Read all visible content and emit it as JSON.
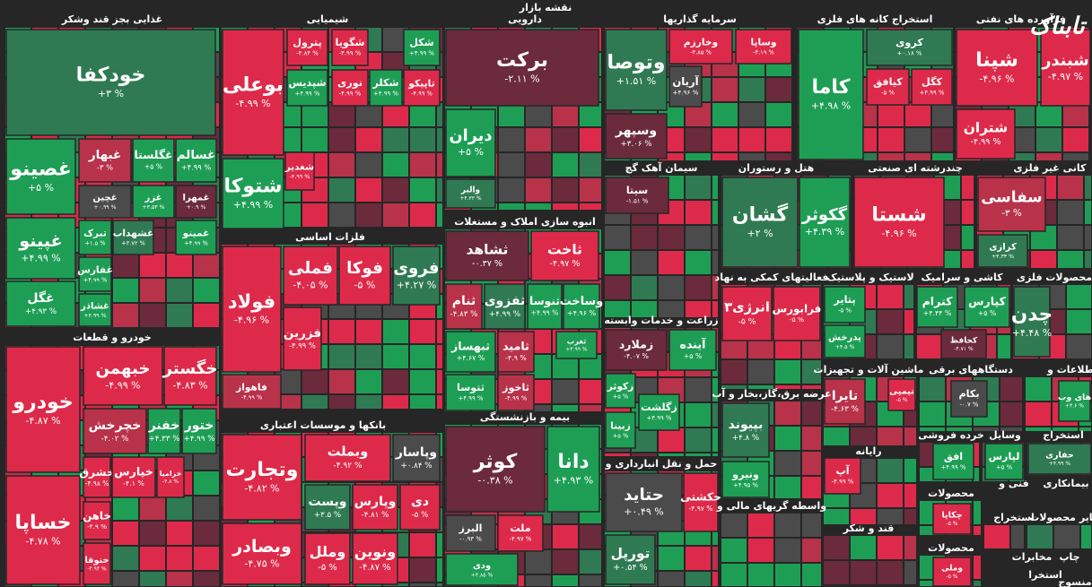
{
  "title": "نقشه بازار",
  "watermark": "تابناک",
  "sectors": [
    {
      "name": "غذایی بجز قند وشکر",
      "tiles": [
        {
          "label": "خودکفا",
          "change": "+۳ %"
        },
        {
          "label": "غصینو",
          "change": "+۵ %"
        },
        {
          "label": "غبهار",
          "change": "-۳ %"
        },
        {
          "label": "غگلستا",
          "change": "+۵ %"
        },
        {
          "label": "غسالم",
          "change": "+۴.۹۹ %"
        },
        {
          "label": "غچین",
          "change": "+۰.۹۹ %"
        },
        {
          "label": "غزر",
          "change": "+۳.۵۳ %"
        },
        {
          "label": "غمهرا",
          "change": "+۰.۹ %"
        },
        {
          "label": "غپینو",
          "change": "+۴.۹۹ %"
        },
        {
          "label": "تبرک",
          "change": "+۱.۵ %"
        },
        {
          "label": "غشهداب",
          "change": "+۳.۷۲ %"
        },
        {
          "label": "غمینو",
          "change": "+۴.۹۹ %"
        },
        {
          "label": "غفارس",
          "change": "+۴.۹۹ %"
        },
        {
          "label": "غگل",
          "change": "+۴.۹۳ %"
        },
        {
          "label": "غشاذر",
          "change": "+۴.۹۹ %"
        }
      ]
    },
    {
      "name": "خودرو و قطعات",
      "tiles": [
        {
          "label": "خودرو",
          "change": "-۴.۸۷ %"
        },
        {
          "label": "خساپا",
          "change": "-۴.۷۸ %"
        },
        {
          "label": "خبهمن",
          "change": "-۴.۹۹ %"
        },
        {
          "label": "خگستر",
          "change": "-۴.۸۳ %"
        },
        {
          "label": "خچرخش",
          "change": "-۴.۰۲ %"
        },
        {
          "label": "خفنر",
          "change": "+۴.۳۳ %"
        },
        {
          "label": "ختور",
          "change": "+۴.۹۹ %"
        },
        {
          "label": "خشرق",
          "change": "-۴.۹۸ %"
        },
        {
          "label": "خپارس",
          "change": "-۴.۱ %"
        },
        {
          "label": "خزامیا",
          "change": "-۴.۸ %"
        },
        {
          "label": "خاهن",
          "change": "-۴.۹ %"
        },
        {
          "label": "ختوقا",
          "change": "-۴.۹۴ %"
        }
      ]
    },
    {
      "name": "شیمیایی",
      "tiles": [
        {
          "label": "بوعلی",
          "change": "-۴.۹۹ %"
        },
        {
          "label": "پترول",
          "change": "-۴.۸۴ %"
        },
        {
          "label": "شگویا",
          "change": "-۴.۹۹ %"
        },
        {
          "label": "شکل",
          "change": "+۴.۹۹ %"
        },
        {
          "label": "شپدیس",
          "change": "+۴.۹۹ %"
        },
        {
          "label": "نوری",
          "change": "-۴.۹۹ %"
        },
        {
          "label": "شکلر",
          "change": "+۴.۹۹ %"
        },
        {
          "label": "تاپیکو",
          "change": "-۴.۹۹ %"
        },
        {
          "label": "شغدیر",
          "change": "-۴.۹۹ %"
        },
        {
          "label": "شتوکا",
          "change": "+۴.۹۹ %"
        }
      ]
    },
    {
      "name": "فلزات اساسی",
      "tiles": [
        {
          "label": "فولاد",
          "change": "-۴.۹۶ %"
        },
        {
          "label": "فملی",
          "change": "-۴.۰۵ %"
        },
        {
          "label": "فوکا",
          "change": "-۵ %"
        },
        {
          "label": "فروی",
          "change": "+۴.۲۷ %"
        },
        {
          "label": "فزرین",
          "change": "-۴.۹۹ %"
        },
        {
          "label": "فاهواز",
          "change": "-۴.۹۹ %"
        }
      ]
    },
    {
      "name": "بانکها و موسسات اعتباری",
      "tiles": [
        {
          "label": "وتجارت",
          "change": "-۴.۸۲ %"
        },
        {
          "label": "وبصادر",
          "change": "-۴.۷۵ %"
        },
        {
          "label": "وبملت",
          "change": "-۴.۹۲ %"
        },
        {
          "label": "وپاسار",
          "change": "+۰.۸۴ %"
        },
        {
          "label": "وپست",
          "change": "+۳.۵ %"
        },
        {
          "label": "وپارس",
          "change": "-۴.۸۱ %"
        },
        {
          "label": "دی",
          "change": "-۵ %"
        },
        {
          "label": "وملل",
          "change": "-۵ %"
        },
        {
          "label": "ونوین",
          "change": "-۴.۸۷ %"
        }
      ]
    },
    {
      "name": "دارویی",
      "tiles": [
        {
          "label": "برکت",
          "change": "-۲.۱۱ %"
        },
        {
          "label": "دیران",
          "change": "+۵ %"
        },
        {
          "label": "والبر",
          "change": "+۴.۳۳ %"
        }
      ]
    },
    {
      "name": "انبوه سازی املاک و مستغلات",
      "tiles": [
        {
          "label": "ثشاهد",
          "change": "-۰.۳۷ %"
        },
        {
          "label": "ثاخت",
          "change": "-۴.۹۷ %"
        },
        {
          "label": "ثنام",
          "change": "-۴.۸۳ %"
        },
        {
          "label": "ثفزوی",
          "change": "+۴.۹۹ %"
        },
        {
          "label": "ثنوسا",
          "change": "+۴.۹۹ %"
        },
        {
          "label": "وساخت",
          "change": "+۴.۹۶ %"
        },
        {
          "label": "ثبهساز",
          "change": "+۴.۶۷ %"
        },
        {
          "label": "ثامید",
          "change": "-۴.۹ %"
        },
        {
          "label": "ثغرب",
          "change": "+۴.۹۹ %"
        },
        {
          "label": "ثتوسا",
          "change": "+۴.۹۹ %"
        },
        {
          "label": "ثاخوز",
          "change": "-۴.۹۹ %"
        }
      ]
    },
    {
      "name": "بیمه و بازنشستگی",
      "tiles": [
        {
          "label": "کوثر",
          "change": "-۰.۳۸ %"
        },
        {
          "label": "دانا",
          "change": "+۴.۹۳ %"
        },
        {
          "label": "البرز",
          "change": "-۰.۹۳ %"
        },
        {
          "label": "ملت",
          "change": "-۴.۹۷ %"
        },
        {
          "label": "ودی",
          "change": "+۴.۸۵ %"
        }
      ]
    },
    {
      "name": "سرمایه گذاریها",
      "tiles": [
        {
          "label": "وتوصا",
          "change": "+۱.۵۱ %"
        },
        {
          "label": "وخارزم",
          "change": "-۴.۸۵ %"
        },
        {
          "label": "وساپا",
          "change": "-۴.۱۹ %"
        },
        {
          "label": "آریان",
          "change": "+۴.۹۶ %"
        },
        {
          "label": "وسپهر",
          "change": "+۳.۰۶ %"
        }
      ]
    },
    {
      "name": "سیمان آهک گچ",
      "tiles": [
        {
          "label": "سیتا",
          "change": "-۱.۵۱ %"
        }
      ]
    },
    {
      "name": "هتل و رستوران",
      "tiles": [
        {
          "label": "گشان",
          "change": "+۲ %"
        },
        {
          "label": "گکوثر",
          "change": "+۴.۳۹ %"
        }
      ]
    },
    {
      "name": "زراعت و خدمات وابسته",
      "tiles": [
        {
          "label": "زملارد",
          "change": "-۴.۰۷ %"
        },
        {
          "label": "آینده",
          "change": "+۵ %"
        },
        {
          "label": "زکوثر",
          "change": "+۵ %"
        },
        {
          "label": "زگلشت",
          "change": "+۴.۹۹ %"
        },
        {
          "label": "زبینا",
          "change": "+۵ %"
        }
      ]
    },
    {
      "name": "حمل و نقل انبارداری و",
      "tiles": [
        {
          "label": "حتاید",
          "change": "+۰.۴۹ %"
        },
        {
          "label": "حکشتی",
          "change": "-۴.۹۷ %"
        },
        {
          "label": "تورپل",
          "change": "+۰.۵۴ %"
        }
      ]
    },
    {
      "name": "فعالیتهای کمکی به نهاد",
      "tiles": [
        {
          "label": "انرژی۳",
          "change": "-۵ %"
        },
        {
          "label": "فرابورس",
          "change": "-۵ %"
        }
      ]
    },
    {
      "name": "عرضه برق،گاز،بخار و آب",
      "tiles": [
        {
          "label": "بپیوند",
          "change": "+۴.۸ %"
        },
        {
          "label": "ونیرو",
          "change": "+۴.۹۵ %"
        }
      ]
    },
    {
      "name": "واسطه گریهای مالی و",
      "tiles": []
    },
    {
      "name": "استخراج کانه های فلزی",
      "tiles": [
        {
          "label": "کاما",
          "change": "+۴.۹۸ %"
        },
        {
          "label": "کروی",
          "change": "+۰.۱۸ %"
        },
        {
          "label": "کیافق",
          "change": "-۵ %"
        },
        {
          "label": "کگل",
          "change": "+۴.۹۹ %"
        }
      ]
    },
    {
      "name": "چندرشته ای صنعتی",
      "tiles": [
        {
          "label": "شستا",
          "change": "-۴.۹۶ %"
        }
      ]
    },
    {
      "name": "فرآورده های نفتی",
      "tiles": [
        {
          "label": "شپنا",
          "change": "-۴.۹۶ %"
        },
        {
          "label": "شبندر",
          "change": "-۴.۹۷ %"
        },
        {
          "label": "شتران",
          "change": "-۴.۹۹ %"
        }
      ]
    },
    {
      "name": "کانی غیر فلزی",
      "tiles": [
        {
          "label": "سفاسی",
          "change": "-۳ %"
        },
        {
          "label": "کرازی",
          "change": "+۴.۳۳ %"
        }
      ]
    },
    {
      "name": "لاستیک و پلاستیک",
      "tiles": [
        {
          "label": "پتایر",
          "change": "-۵ %"
        },
        {
          "label": "پدرخش",
          "change": "+۴.۵ %"
        }
      ]
    },
    {
      "name": "کاشی و سرامیک",
      "tiles": [
        {
          "label": "کترام",
          "change": "+۴.۴۴ %"
        },
        {
          "label": "کپارس",
          "change": "+۵ %"
        },
        {
          "label": "کحافظ",
          "change": "-۴.۷۱ %"
        }
      ]
    },
    {
      "name": "محصولات فلزی",
      "tiles": [
        {
          "label": "چدن",
          "change": "+۴.۴۸ %"
        }
      ]
    },
    {
      "name": "ماشین آلات و تجهیزات",
      "tiles": [
        {
          "label": "تایرا",
          "change": "-۴.۶۳ %"
        },
        {
          "label": "تپمپی",
          "change": "-۵ %"
        }
      ]
    },
    {
      "name": "دستگاههای برقی",
      "tiles": [
        {
          "label": "بکام",
          "change": "-۰.۷ %"
        }
      ]
    },
    {
      "name": "اطلاعات و",
      "tiles": [
        {
          "label": "های وب",
          "change": "+۴.۶ %"
        }
      ]
    },
    {
      "name": "رایانه",
      "tiles": [
        {
          "label": "آپ",
          "change": "-۴.۹۹ %"
        }
      ]
    },
    {
      "name": "قند و شکر",
      "tiles": []
    },
    {
      "name": "خرده فروشی",
      "tiles": [
        {
          "label": "افق",
          "change": "+۴.۹۹ %"
        }
      ]
    },
    {
      "name": "وسایل",
      "tiles": [
        {
          "label": "لپارس",
          "change": "+۵ %"
        }
      ]
    },
    {
      "name": "استخراج",
      "tiles": [
        {
          "label": "حفاری",
          "change": "+۴.۹۹ %"
        }
      ]
    },
    {
      "name": "فنی و",
      "tiles": []
    },
    {
      "name": "بیمانکاری",
      "tiles": []
    },
    {
      "name": "محصولات",
      "tiles": [
        {
          "label": "چکاپا",
          "change": "-۵ %"
        }
      ]
    },
    {
      "name": "سایر محصولات",
      "tiles": []
    },
    {
      "name": "استخراج",
      "tiles": []
    },
    {
      "name": "محصولات",
      "tiles": [
        {
          "label": "وملی",
          "change": "-۵ %"
        }
      ]
    },
    {
      "name": "مخابرات",
      "tiles": []
    },
    {
      "name": "چاپ",
      "tiles": []
    },
    {
      "name": "منسوج",
      "tiles": []
    },
    {
      "name": "استخرا",
      "tiles": []
    }
  ]
}
